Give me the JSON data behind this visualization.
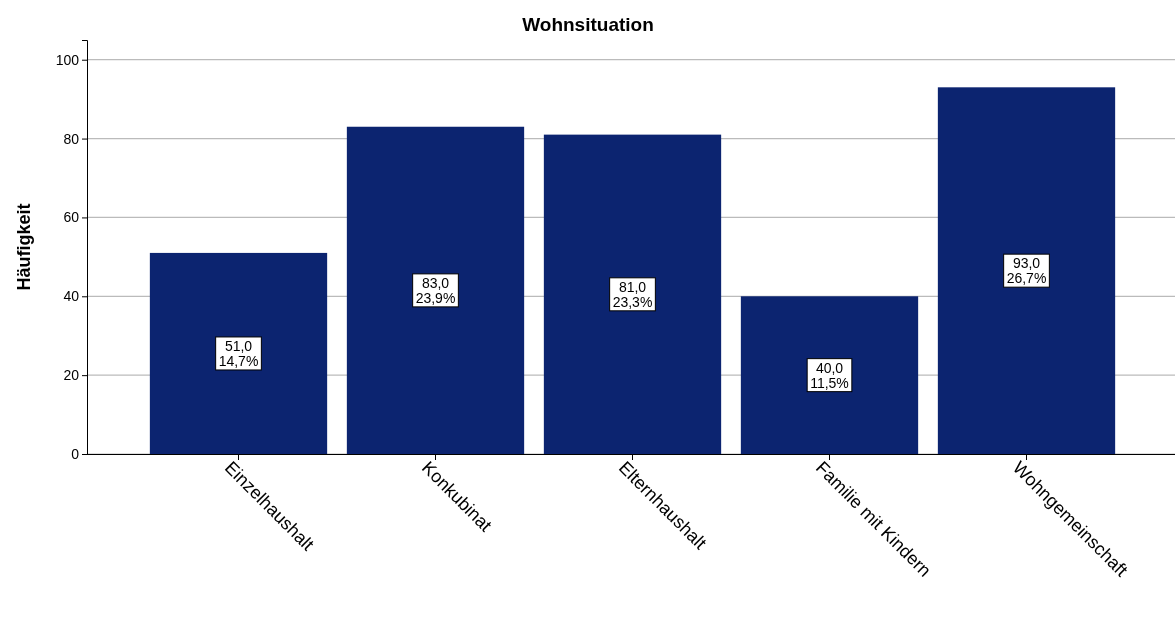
{
  "chart_data": {
    "type": "bar",
    "title": "Wohnsituation",
    "ylabel": "Häufigkeit",
    "categories": [
      "Einzelhaushalt",
      "Konkubinat",
      "Elternhaushalt",
      "Familie mit Kindern",
      "Wohngemeinschaft"
    ],
    "values": [
      51,
      83,
      81,
      40,
      93
    ],
    "value_labels": [
      "51,0\n14,7%",
      "83,0\n23,9%",
      "81,0\n23,3%",
      "40,0\n11,5%",
      "93,0\n26,7%"
    ],
    "color": "#0c2470",
    "ylim": [
      0,
      105
    ],
    "yticks": [
      0,
      20,
      40,
      60,
      80,
      100
    ],
    "grid": "y"
  }
}
